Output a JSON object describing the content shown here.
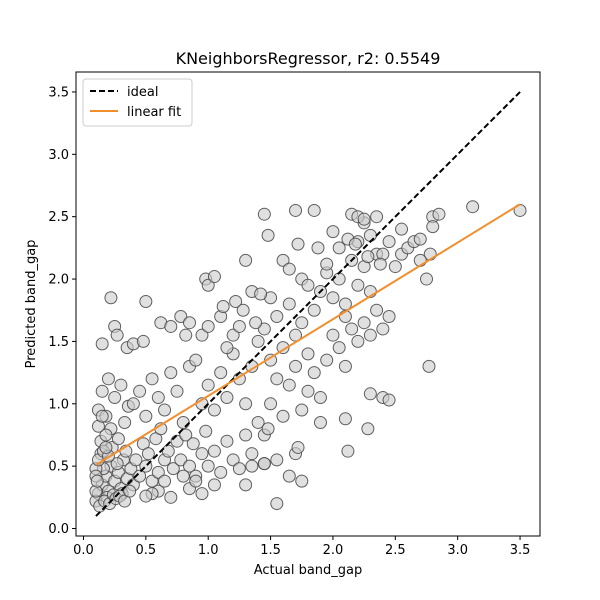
{
  "chart_data": {
    "type": "scatter",
    "title": "KNeighborsRegressor, r2: 0.5549",
    "xlabel": "Actual band_gap",
    "ylabel": "Predicted band_gap",
    "xlim": [
      -0.06,
      3.66
    ],
    "ylim": [
      -0.06,
      3.66
    ],
    "x_ticks": [
      0.0,
      0.5,
      1.0,
      1.5,
      2.0,
      2.5,
      3.0,
      3.5
    ],
    "x_tick_labels": [
      "0.0",
      "0.5",
      "1.0",
      "1.5",
      "2.0",
      "2.5",
      "3.0",
      "3.5"
    ],
    "y_ticks": [
      0.0,
      0.5,
      1.0,
      1.5,
      2.0,
      2.5,
      3.0,
      3.5
    ],
    "y_tick_labels": [
      "0.0",
      "0.5",
      "1.0",
      "1.5",
      "2.0",
      "2.5",
      "3.0",
      "3.5"
    ],
    "grid": false,
    "legend": {
      "position": "top-left",
      "entries": [
        {
          "label": "ideal",
          "style": "dashed",
          "color": "#000000"
        },
        {
          "label": "linear fit",
          "style": "solid",
          "color": "#f28e2b"
        }
      ]
    },
    "ideal_line": {
      "x": [
        0.1,
        3.5
      ],
      "y": [
        0.1,
        3.5
      ]
    },
    "fit_line": {
      "x": [
        0.1,
        3.5
      ],
      "y": [
        0.51,
        2.6
      ]
    },
    "marker": {
      "fill": "#cccccc",
      "edge": "#444444",
      "alpha": 0.6
    },
    "points": [
      [
        0.12,
        0.28
      ],
      [
        0.15,
        0.35
      ],
      [
        0.18,
        0.42
      ],
      [
        0.2,
        0.3
      ],
      [
        0.22,
        0.5
      ],
      [
        0.25,
        0.38
      ],
      [
        0.28,
        0.45
      ],
      [
        0.3,
        0.32
      ],
      [
        0.32,
        0.55
      ],
      [
        0.35,
        0.4
      ],
      [
        0.1,
        0.22
      ],
      [
        0.14,
        0.6
      ],
      [
        0.16,
        0.48
      ],
      [
        0.19,
        0.25
      ],
      [
        0.23,
        0.65
      ],
      [
        0.27,
        0.52
      ],
      [
        0.31,
        0.28
      ],
      [
        0.34,
        0.62
      ],
      [
        0.38,
        0.48
      ],
      [
        0.4,
        0.35
      ],
      [
        0.12,
        0.95
      ],
      [
        0.15,
        1.1
      ],
      [
        0.18,
        0.9
      ],
      [
        0.2,
        1.2
      ],
      [
        0.22,
        0.8
      ],
      [
        0.25,
        1.05
      ],
      [
        0.28,
        0.72
      ],
      [
        0.3,
        1.15
      ],
      [
        0.33,
        0.85
      ],
      [
        0.36,
        0.98
      ],
      [
        0.42,
        0.55
      ],
      [
        0.45,
        0.42
      ],
      [
        0.48,
        0.68
      ],
      [
        0.5,
        0.5
      ],
      [
        0.52,
        0.6
      ],
      [
        0.55,
        0.38
      ],
      [
        0.58,
        0.72
      ],
      [
        0.6,
        0.45
      ],
      [
        0.62,
        0.8
      ],
      [
        0.65,
        0.55
      ],
      [
        0.4,
        1.0
      ],
      [
        0.45,
        1.1
      ],
      [
        0.5,
        0.9
      ],
      [
        0.55,
        1.2
      ],
      [
        0.6,
        1.05
      ],
      [
        0.65,
        0.95
      ],
      [
        0.7,
        1.25
      ],
      [
        0.75,
        1.1
      ],
      [
        0.8,
        0.85
      ],
      [
        0.85,
        1.3
      ],
      [
        0.68,
        0.62
      ],
      [
        0.72,
        0.48
      ],
      [
        0.75,
        0.7
      ],
      [
        0.78,
        0.55
      ],
      [
        0.82,
        0.75
      ],
      [
        0.85,
        0.5
      ],
      [
        0.88,
        0.68
      ],
      [
        0.9,
        0.42
      ],
      [
        0.95,
        0.6
      ],
      [
        0.98,
        0.78
      ],
      [
        0.9,
        1.35
      ],
      [
        0.95,
        1.0
      ],
      [
        1.0,
        1.15
      ],
      [
        1.05,
        0.95
      ],
      [
        1.1,
        1.25
      ],
      [
        1.15,
        1.05
      ],
      [
        1.2,
        1.4
      ],
      [
        1.25,
        1.2
      ],
      [
        1.3,
        1.0
      ],
      [
        1.35,
        1.3
      ],
      [
        1.0,
        0.5
      ],
      [
        1.05,
        0.62
      ],
      [
        1.1,
        0.45
      ],
      [
        1.15,
        0.7
      ],
      [
        1.2,
        0.55
      ],
      [
        1.25,
        0.48
      ],
      [
        1.3,
        0.75
      ],
      [
        1.35,
        0.6
      ],
      [
        1.4,
        0.85
      ],
      [
        1.45,
        0.52
      ],
      [
        1.4,
        1.5
      ],
      [
        1.45,
        1.6
      ],
      [
        1.5,
        1.35
      ],
      [
        1.55,
        1.7
      ],
      [
        1.6,
        1.45
      ],
      [
        1.65,
        1.8
      ],
      [
        1.7,
        1.55
      ],
      [
        1.75,
        1.65
      ],
      [
        1.8,
        1.4
      ],
      [
        1.85,
        1.75
      ],
      [
        1.5,
        1.0
      ],
      [
        1.55,
        1.2
      ],
      [
        1.6,
        0.9
      ],
      [
        1.65,
        1.15
      ],
      [
        1.7,
        1.3
      ],
      [
        1.75,
        0.95
      ],
      [
        1.8,
        1.1
      ],
      [
        1.85,
        1.25
      ],
      [
        1.9,
        1.05
      ],
      [
        1.95,
        1.35
      ],
      [
        1.9,
        1.9
      ],
      [
        1.95,
        2.05
      ],
      [
        2.0,
        1.85
      ],
      [
        2.05,
        2.0
      ],
      [
        2.1,
        1.8
      ],
      [
        2.15,
        2.15
      ],
      [
        2.2,
        1.95
      ],
      [
        2.25,
        2.1
      ],
      [
        2.3,
        1.9
      ],
      [
        2.35,
        2.2
      ],
      [
        2.0,
        1.55
      ],
      [
        2.05,
        1.45
      ],
      [
        2.1,
        1.7
      ],
      [
        2.15,
        1.6
      ],
      [
        2.2,
        1.5
      ],
      [
        2.25,
        1.65
      ],
      [
        2.3,
        1.55
      ],
      [
        2.35,
        1.75
      ],
      [
        2.4,
        1.6
      ],
      [
        2.45,
        1.7
      ],
      [
        2.2,
        2.3
      ],
      [
        2.25,
        2.45
      ],
      [
        2.3,
        2.35
      ],
      [
        2.35,
        2.5
      ],
      [
        2.4,
        2.2
      ],
      [
        2.45,
        2.3
      ],
      [
        2.5,
        2.1
      ],
      [
        2.55,
        2.2
      ],
      [
        2.6,
        2.25
      ],
      [
        2.65,
        2.3
      ],
      [
        1.7,
        2.55
      ],
      [
        1.85,
        2.55
      ],
      [
        2.15,
        2.52
      ],
      [
        2.2,
        2.5
      ],
      [
        2.25,
        2.48
      ],
      [
        1.45,
        2.52
      ],
      [
        2.8,
        2.5
      ],
      [
        2.85,
        2.52
      ],
      [
        3.12,
        2.58
      ],
      [
        3.5,
        2.55
      ],
      [
        1.48,
        2.35
      ],
      [
        1.72,
        2.28
      ],
      [
        1.88,
        2.25
      ],
      [
        2.0,
        2.38
      ],
      [
        2.7,
        2.32
      ],
      [
        2.8,
        2.42
      ],
      [
        2.55,
        2.4
      ],
      [
        2.78,
        2.2
      ],
      [
        2.7,
        2.15
      ],
      [
        2.75,
        2.0
      ],
      [
        0.22,
        1.85
      ],
      [
        0.5,
        1.82
      ],
      [
        0.62,
        1.65
      ],
      [
        0.98,
        2.0
      ],
      [
        1.0,
        1.95
      ],
      [
        1.05,
        2.02
      ],
      [
        1.35,
        1.9
      ],
      [
        1.5,
        1.85
      ],
      [
        1.42,
        1.88
      ],
      [
        1.3,
        2.15
      ],
      [
        0.25,
        1.62
      ],
      [
        0.27,
        1.55
      ],
      [
        0.15,
        1.48
      ],
      [
        0.35,
        1.45
      ],
      [
        0.4,
        1.48
      ],
      [
        0.48,
        1.5
      ],
      [
        0.7,
        1.62
      ],
      [
        0.78,
        1.7
      ],
      [
        0.82,
        1.55
      ],
      [
        0.85,
        1.65
      ],
      [
        2.77,
        1.3
      ],
      [
        2.1,
        1.3
      ],
      [
        2.3,
        1.08
      ],
      [
        2.4,
        1.05
      ],
      [
        2.45,
        1.03
      ],
      [
        1.9,
        0.85
      ],
      [
        2.1,
        0.88
      ],
      [
        2.28,
        0.8
      ],
      [
        2.12,
        0.62
      ],
      [
        1.45,
        0.75
      ],
      [
        1.3,
        0.35
      ],
      [
        1.55,
        0.2
      ],
      [
        1.65,
        0.42
      ],
      [
        1.75,
        0.38
      ],
      [
        1.7,
        0.6
      ],
      [
        1.72,
        0.65
      ],
      [
        1.55,
        0.55
      ],
      [
        1.45,
        0.52
      ],
      [
        1.48,
        0.8
      ],
      [
        1.35,
        0.5
      ],
      [
        0.8,
        0.42
      ],
      [
        0.85,
        0.32
      ],
      [
        0.9,
        0.38
      ],
      [
        0.95,
        0.28
      ],
      [
        1.05,
        0.35
      ],
      [
        0.7,
        0.25
      ],
      [
        0.6,
        0.3
      ],
      [
        0.65,
        0.38
      ],
      [
        0.55,
        0.28
      ],
      [
        0.5,
        0.26
      ],
      [
        0.1,
        0.48
      ],
      [
        0.12,
        0.55
      ],
      [
        0.14,
        0.7
      ],
      [
        0.16,
        0.62
      ],
      [
        0.18,
        0.75
      ],
      [
        0.2,
        0.58
      ],
      [
        0.12,
        0.82
      ],
      [
        0.15,
        0.9
      ],
      [
        0.18,
        0.65
      ],
      [
        0.1,
        0.42
      ],
      [
        0.1,
        0.3
      ],
      [
        0.11,
        0.38
      ],
      [
        0.13,
        0.18
      ],
      [
        0.17,
        0.22
      ],
      [
        0.21,
        0.2
      ],
      [
        0.24,
        0.27
      ],
      [
        0.26,
        0.24
      ],
      [
        0.29,
        0.26
      ],
      [
        0.33,
        0.22
      ],
      [
        0.37,
        0.3
      ],
      [
        0.95,
        1.55
      ],
      [
        1.0,
        1.62
      ],
      [
        1.1,
        1.7
      ],
      [
        1.15,
        1.45
      ],
      [
        1.2,
        1.55
      ],
      [
        1.25,
        1.62
      ],
      [
        1.12,
        1.78
      ],
      [
        1.22,
        1.82
      ],
      [
        1.28,
        1.75
      ],
      [
        1.38,
        1.65
      ],
      [
        1.6,
        2.15
      ],
      [
        1.65,
        2.08
      ],
      [
        1.75,
        2.0
      ],
      [
        1.8,
        1.95
      ],
      [
        1.95,
        2.12
      ],
      [
        2.05,
        2.25
      ],
      [
        2.12,
        2.32
      ],
      [
        2.18,
        2.28
      ],
      [
        2.28,
        2.18
      ],
      [
        2.38,
        2.12
      ]
    ]
  }
}
